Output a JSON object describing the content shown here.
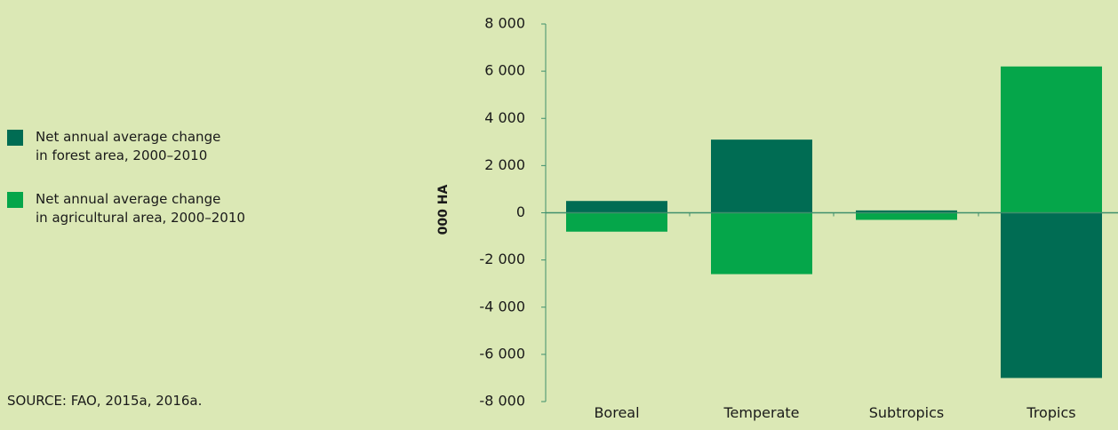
{
  "legend": {
    "items": [
      {
        "label": "Net annual average change\nin forest area, 2000–2010",
        "color": "#006c53"
      },
      {
        "label": "Net annual average change\nin agricultural area, 2000–2010",
        "color": "#05a64a"
      }
    ]
  },
  "source": "SOURCE: FAO, 2015a, 2016a.",
  "chart_data": {
    "type": "bar",
    "stacked": "diverging",
    "categories": [
      "Boreal",
      "Temperate",
      "Subtropics",
      "Tropics"
    ],
    "series": [
      {
        "name": "Net annual average change in forest area, 2000–2010",
        "color": "#006c53",
        "values": [
          500,
          3100,
          100,
          -7000
        ]
      },
      {
        "name": "Net annual average change in agricultural area, 2000–2010",
        "color": "#05a64a",
        "values": [
          -800,
          -2600,
          -300,
          6200
        ]
      }
    ],
    "ylabel": "000 HA",
    "ylim": [
      -8000,
      8000
    ],
    "yticks": [
      8000,
      6000,
      4000,
      2000,
      0,
      -2000,
      -4000,
      -6000,
      -8000
    ],
    "ytick_labels": [
      "8 000",
      "6 000",
      "4 000",
      "2 000",
      "0",
      "-2 000",
      "-4 000",
      "-6 000",
      "-8 000"
    ],
    "grid": false,
    "axis_color": "#3f8f6c"
  }
}
